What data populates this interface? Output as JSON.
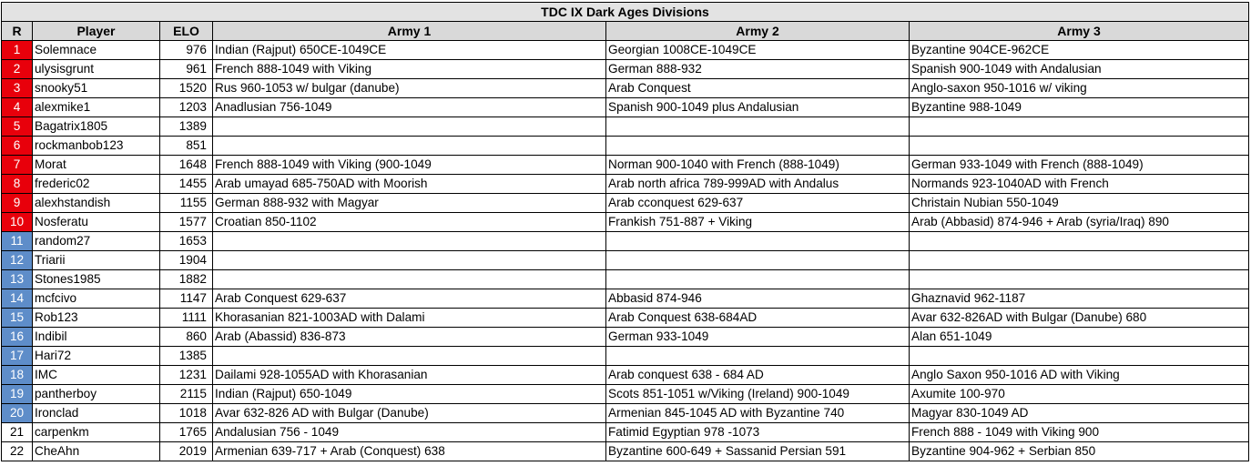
{
  "title": "TDC IX Dark Ages Divisions",
  "headers": [
    "R",
    "Player",
    "ELO",
    "Army 1",
    "Army 2",
    "Army 3"
  ],
  "colors": {
    "top10": "#e8000b",
    "next10": "#5e8dc9",
    "header": "#d9d9d9"
  },
  "rows": [
    {
      "r": "1",
      "player": "Solemnace",
      "elo": "976",
      "a1": "Indian (Rajput) 650CE-1049CE",
      "a2": "Georgian 1008CE-1049CE",
      "a3": "Byzantine 904CE-962CE",
      "band": "red"
    },
    {
      "r": "2",
      "player": "ulysisgrunt",
      "elo": "961",
      "a1": "French 888-1049 with Viking",
      "a2": "German 888-932",
      "a3": "Spanish 900-1049 with Andalusian",
      "band": "red"
    },
    {
      "r": "3",
      "player": "snooky51",
      "elo": "1520",
      "a1": "Rus 960-1053 w/ bulgar (danube)",
      "a2": "Arab Conquest",
      "a3": "Anglo-saxon 950-1016 w/ viking",
      "band": "red"
    },
    {
      "r": "4",
      "player": "alexmike1",
      "elo": "1203",
      "a1": "Anadlusian 756-1049",
      "a2": "Spanish 900-1049 plus Andalusian",
      "a3": "Byzantine 988-1049",
      "band": "red"
    },
    {
      "r": "5",
      "player": "Bagatrix1805",
      "elo": "1389",
      "a1": "",
      "a2": "",
      "a3": "",
      "band": "red"
    },
    {
      "r": "6",
      "player": "rockmanbob123",
      "elo": "851",
      "a1": "",
      "a2": "",
      "a3": "",
      "band": "red"
    },
    {
      "r": "7",
      "player": "Morat",
      "elo": "1648",
      "a1": "French 888-1049 with Viking (900-1049",
      "a2": "Norman 900-1040 with French (888-1049)",
      "a3": "German 933-1049 with French (888-1049)",
      "band": "red"
    },
    {
      "r": "8",
      "player": "frederic02",
      "elo": "1455",
      "a1": "Arab umayad 685-750AD with Moorish",
      "a2": "Arab north africa 789-999AD with Andalus",
      "a3": "Normands 923-1040AD with French",
      "band": "red"
    },
    {
      "r": "9",
      "player": "alexhstandish",
      "elo": "1155",
      "a1": "German 888-932 with Magyar",
      "a2": "Arab cconquest 629-637",
      "a3": "Christain Nubian 550-1049",
      "band": "red"
    },
    {
      "r": "10",
      "player": "Nosferatu",
      "elo": "1577",
      "a1": "Croatian 850-1102",
      "a2": "Frankish 751-887 + Viking",
      "a3": "Arab (Abbasid) 874-946 + Arab (syria/Iraq) 890",
      "band": "red"
    },
    {
      "r": "11",
      "player": "random27",
      "elo": "1653",
      "a1": "",
      "a2": "",
      "a3": "",
      "band": "blue"
    },
    {
      "r": "12",
      "player": "Triarii",
      "elo": "1904",
      "a1": "",
      "a2": "",
      "a3": "",
      "band": "blue"
    },
    {
      "r": "13",
      "player": "Stones1985",
      "elo": "1882",
      "a1": "",
      "a2": "",
      "a3": "",
      "band": "blue"
    },
    {
      "r": "14",
      "player": "mcfcivo",
      "elo": "1147",
      "a1": "Arab Conquest 629-637",
      "a2": "Abbasid 874-946",
      "a3": "Ghaznavid 962-1187",
      "band": "blue"
    },
    {
      "r": "15",
      "player": "Rob123",
      "elo": "1111",
      "a1": "Khorasanian 821-1003AD with Dalami",
      "a2": "Arab Conquest 638-684AD",
      "a3": "Avar 632-826AD with Bulgar (Danube) 680",
      "band": "blue"
    },
    {
      "r": "16",
      "player": "Indibil",
      "elo": "860",
      "a1": "Arab (Abassid) 836-873",
      "a2": "German 933-1049",
      "a3": "Alan 651-1049",
      "band": "blue"
    },
    {
      "r": "17",
      "player": "Hari72",
      "elo": "1385",
      "a1": "",
      "a2": "",
      "a3": "",
      "band": "blue"
    },
    {
      "r": "18",
      "player": "IMC",
      "elo": "1231",
      "a1": "Dailami 928-1055AD with Khorasanian",
      "a2": "Arab conquest 638 - 684 AD",
      "a3": "Anglo Saxon 950-1016 AD with Viking",
      "band": "blue"
    },
    {
      "r": "19",
      "player": "pantherboy",
      "elo": "2115",
      "a1": "Indian (Rajput) 650-1049",
      "a2": "Scots 851-1051 w/Viking (Ireland) 900-1049",
      "a3": "Axumite 100-970",
      "band": "blue"
    },
    {
      "r": "20",
      "player": "Ironclad",
      "elo": "1018",
      "a1": "Avar 632-826 AD with Bulgar (Danube)",
      "a2": "Armenian 845-1045 AD with Byzantine 740",
      "a3": "Magyar 830-1049 AD",
      "band": "blue"
    },
    {
      "r": "21",
      "player": "carpenkm",
      "elo": "1765",
      "a1": "Andalusian 756 - 1049",
      "a2": "Fatimid Egyptian 978 -1073",
      "a3": "French 888 - 1049 with Viking 900",
      "band": "plain"
    },
    {
      "r": "22",
      "player": "CheAhn",
      "elo": "2019",
      "a1": "Armenian 639-717 + Arab (Conquest) 638",
      "a2": "Byzantine 600-649 + Sassanid Persian 591",
      "a3": "Byzantine 904-962 + Serbian 850",
      "band": "plain"
    }
  ]
}
